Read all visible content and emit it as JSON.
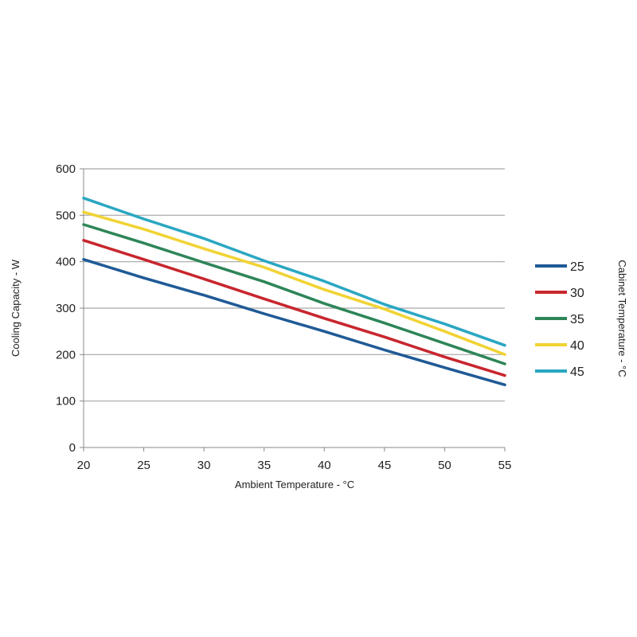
{
  "chart_data": {
    "type": "line",
    "xlabel": "Ambient Temperature - °C",
    "ylabel": "Cooling Capacity - W",
    "legend_title": "Cabinet Temperature - °C",
    "legend_position": "right",
    "grid": "horizontal",
    "xlim": [
      20,
      55
    ],
    "ylim": [
      0,
      600
    ],
    "x_ticks": [
      20,
      25,
      30,
      35,
      40,
      45,
      50,
      55
    ],
    "y_ticks": [
      0,
      100,
      200,
      300,
      400,
      500,
      600
    ],
    "x": [
      20,
      25,
      30,
      35,
      40,
      45,
      50,
      55
    ],
    "series": [
      {
        "name": "25",
        "color": "#1f5a96",
        "values": [
          405,
          365,
          328,
          288,
          250,
          210,
          172,
          135
        ]
      },
      {
        "name": "30",
        "color": "#c8262e",
        "values": [
          446,
          405,
          363,
          320,
          278,
          238,
          195,
          155
        ]
      },
      {
        "name": "35",
        "color": "#2e8558",
        "values": [
          480,
          440,
          398,
          357,
          310,
          268,
          224,
          180
        ]
      },
      {
        "name": "40",
        "color": "#f1d334",
        "values": [
          507,
          470,
          428,
          388,
          340,
          298,
          250,
          200
        ]
      },
      {
        "name": "45",
        "color": "#2aa7c2",
        "values": [
          537,
          492,
          450,
          402,
          358,
          308,
          266,
          220
        ]
      }
    ]
  }
}
